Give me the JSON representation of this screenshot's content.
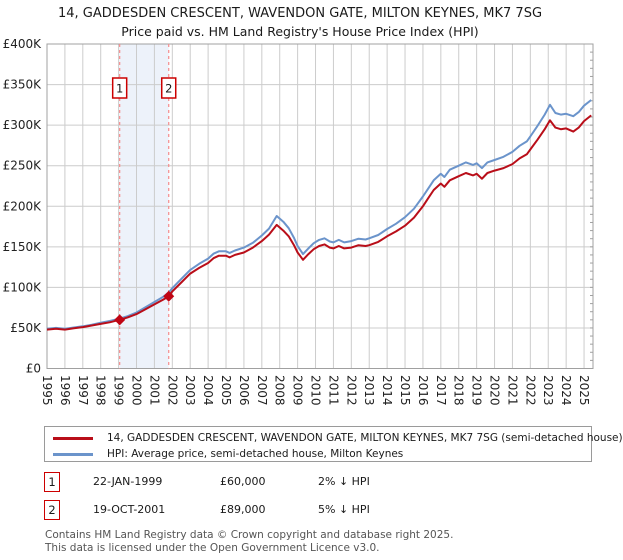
{
  "footer": {
    "line1": "Contains HM Land Registry data © Crown copyright and database right 2025.",
    "line2": "This data is licensed under the Open Government Licence v3.0."
  },
  "colors": {
    "price_line": "#b90e19",
    "hpi_line": "#6b94cb",
    "grid": "#cccccc",
    "frame": "#a0a0a0",
    "band": "#edf2fa",
    "sale_dash": "#f58b8b",
    "sale_box_border": "#cc0000",
    "marker": "#c00514",
    "axis_text": "#222222"
  },
  "chart_data": {
    "type": "line",
    "title": "14, GADDESDEN CRESCENT, WAVENDON GATE, MILTON KEYNES, MK7 7SG",
    "subtitle": "Price paid vs. HM Land Registry's House Price Index (HPI)",
    "grid": true,
    "legend_position": "bottom",
    "xlim": [
      1995,
      2025.5
    ],
    "ylim": [
      0,
      400000
    ],
    "x_ticks": [
      1995,
      1996,
      1997,
      1998,
      1999,
      2000,
      2001,
      2002,
      2003,
      2004,
      2005,
      2006,
      2007,
      2008,
      2009,
      2010,
      2011,
      2012,
      2013,
      2014,
      2015,
      2016,
      2017,
      2018,
      2019,
      2020,
      2021,
      2022,
      2023,
      2024,
      2025
    ],
    "y_ticks": [
      {
        "v": 0,
        "label": "£0"
      },
      {
        "v": 50000,
        "label": "£50K"
      },
      {
        "v": 100000,
        "label": "£100K"
      },
      {
        "v": 150000,
        "label": "£150K"
      },
      {
        "v": 200000,
        "label": "£200K"
      },
      {
        "v": 250000,
        "label": "£250K"
      },
      {
        "v": 300000,
        "label": "£300K"
      },
      {
        "v": 350000,
        "label": "£350K"
      },
      {
        "v": 400000,
        "label": "£400K"
      }
    ],
    "y_minor_step": 10000,
    "x": [
      1995.0,
      1995.5,
      1996.0,
      1996.5,
      1997.0,
      1997.5,
      1998.0,
      1998.5,
      1999.06,
      1999.5,
      2000.0,
      2000.5,
      2001.0,
      2001.5,
      2001.8,
      2002.0,
      2002.5,
      2003.0,
      2003.5,
      2004.0,
      2004.3,
      2004.6,
      2005.0,
      2005.2,
      2005.5,
      2006.0,
      2006.5,
      2007.0,
      2007.4,
      2007.83,
      2008.2,
      2008.5,
      2008.8,
      2009.0,
      2009.3,
      2009.6,
      2009.9,
      2010.2,
      2010.5,
      2010.8,
      2011.0,
      2011.3,
      2011.6,
      2012.0,
      2012.4,
      2012.8,
      2013.0,
      2013.5,
      2014.0,
      2014.5,
      2015.0,
      2015.5,
      2016.0,
      2016.3,
      2016.6,
      2017.0,
      2017.2,
      2017.5,
      2018.0,
      2018.4,
      2018.8,
      2019.0,
      2019.3,
      2019.6,
      2020.0,
      2020.5,
      2021.0,
      2021.4,
      2021.8,
      2022.0,
      2022.4,
      2022.8,
      2023.1,
      2023.4,
      2023.7,
      2024.0,
      2024.4,
      2024.7,
      2025.0,
      2025.4
    ],
    "series": [
      {
        "name": "14, GADDESDEN CRESCENT, WAVENDON GATE, MILTON KEYNES, MK7 7SG (semi-detached house)",
        "values": [
          48000,
          49000,
          48000,
          49500,
          51000,
          53000,
          55000,
          57000,
          60000,
          63000,
          67000,
          73000,
          79000,
          85000,
          89000,
          95000,
          106000,
          117000,
          124000,
          130000,
          136000,
          139000,
          139000,
          137000,
          140000,
          143000,
          149000,
          157000,
          165000,
          177000,
          170000,
          163000,
          152000,
          143000,
          134000,
          141000,
          147000,
          151000,
          153000,
          149000,
          148000,
          151000,
          148000,
          149000,
          152000,
          151000,
          152000,
          156000,
          163000,
          169000,
          176000,
          186000,
          200000,
          210000,
          220000,
          228000,
          224000,
          232000,
          237000,
          241000,
          238000,
          240000,
          234000,
          241000,
          244000,
          247000,
          252000,
          259000,
          264000,
          270000,
          282000,
          295000,
          306000,
          297000,
          295000,
          296000,
          292000,
          297000,
          305000,
          312000
        ]
      },
      {
        "name": "HPI: Average price, semi-detached house, Milton Keynes",
        "values": [
          49000,
          50000,
          49000,
          50500,
          52000,
          54000,
          56500,
          58500,
          61500,
          64500,
          69000,
          75500,
          82000,
          88500,
          93700,
          99000,
          110500,
          121500,
          129000,
          135500,
          141500,
          144500,
          144500,
          142500,
          145500,
          149000,
          155000,
          164000,
          172500,
          188000,
          181000,
          173000,
          161000,
          151000,
          141000,
          148000,
          154500,
          158500,
          160500,
          156500,
          155500,
          158500,
          155500,
          157000,
          160000,
          159000,
          160500,
          164500,
          172000,
          178500,
          186500,
          197000,
          212000,
          222000,
          232000,
          240000,
          236000,
          245000,
          250000,
          254000,
          251000,
          253000,
          247000,
          254000,
          257000,
          261000,
          267000,
          274500,
          280000,
          286000,
          299000,
          313000,
          325000,
          315000,
          313000,
          314000,
          311000,
          316000,
          324000,
          331000
        ]
      }
    ],
    "sales": [
      {
        "index": "1",
        "x": 1999.06,
        "value": 60000,
        "date": "22-JAN-1999",
        "price": "£60,000",
        "vs_hpi": "2% ↓ HPI"
      },
      {
        "index": "2",
        "x": 2001.8,
        "value": 89000,
        "date": "19-OCT-2001",
        "price": "£89,000",
        "vs_hpi": "5% ↓ HPI"
      }
    ],
    "highlight_band": {
      "from": 1999.06,
      "to": 2001.8
    }
  }
}
